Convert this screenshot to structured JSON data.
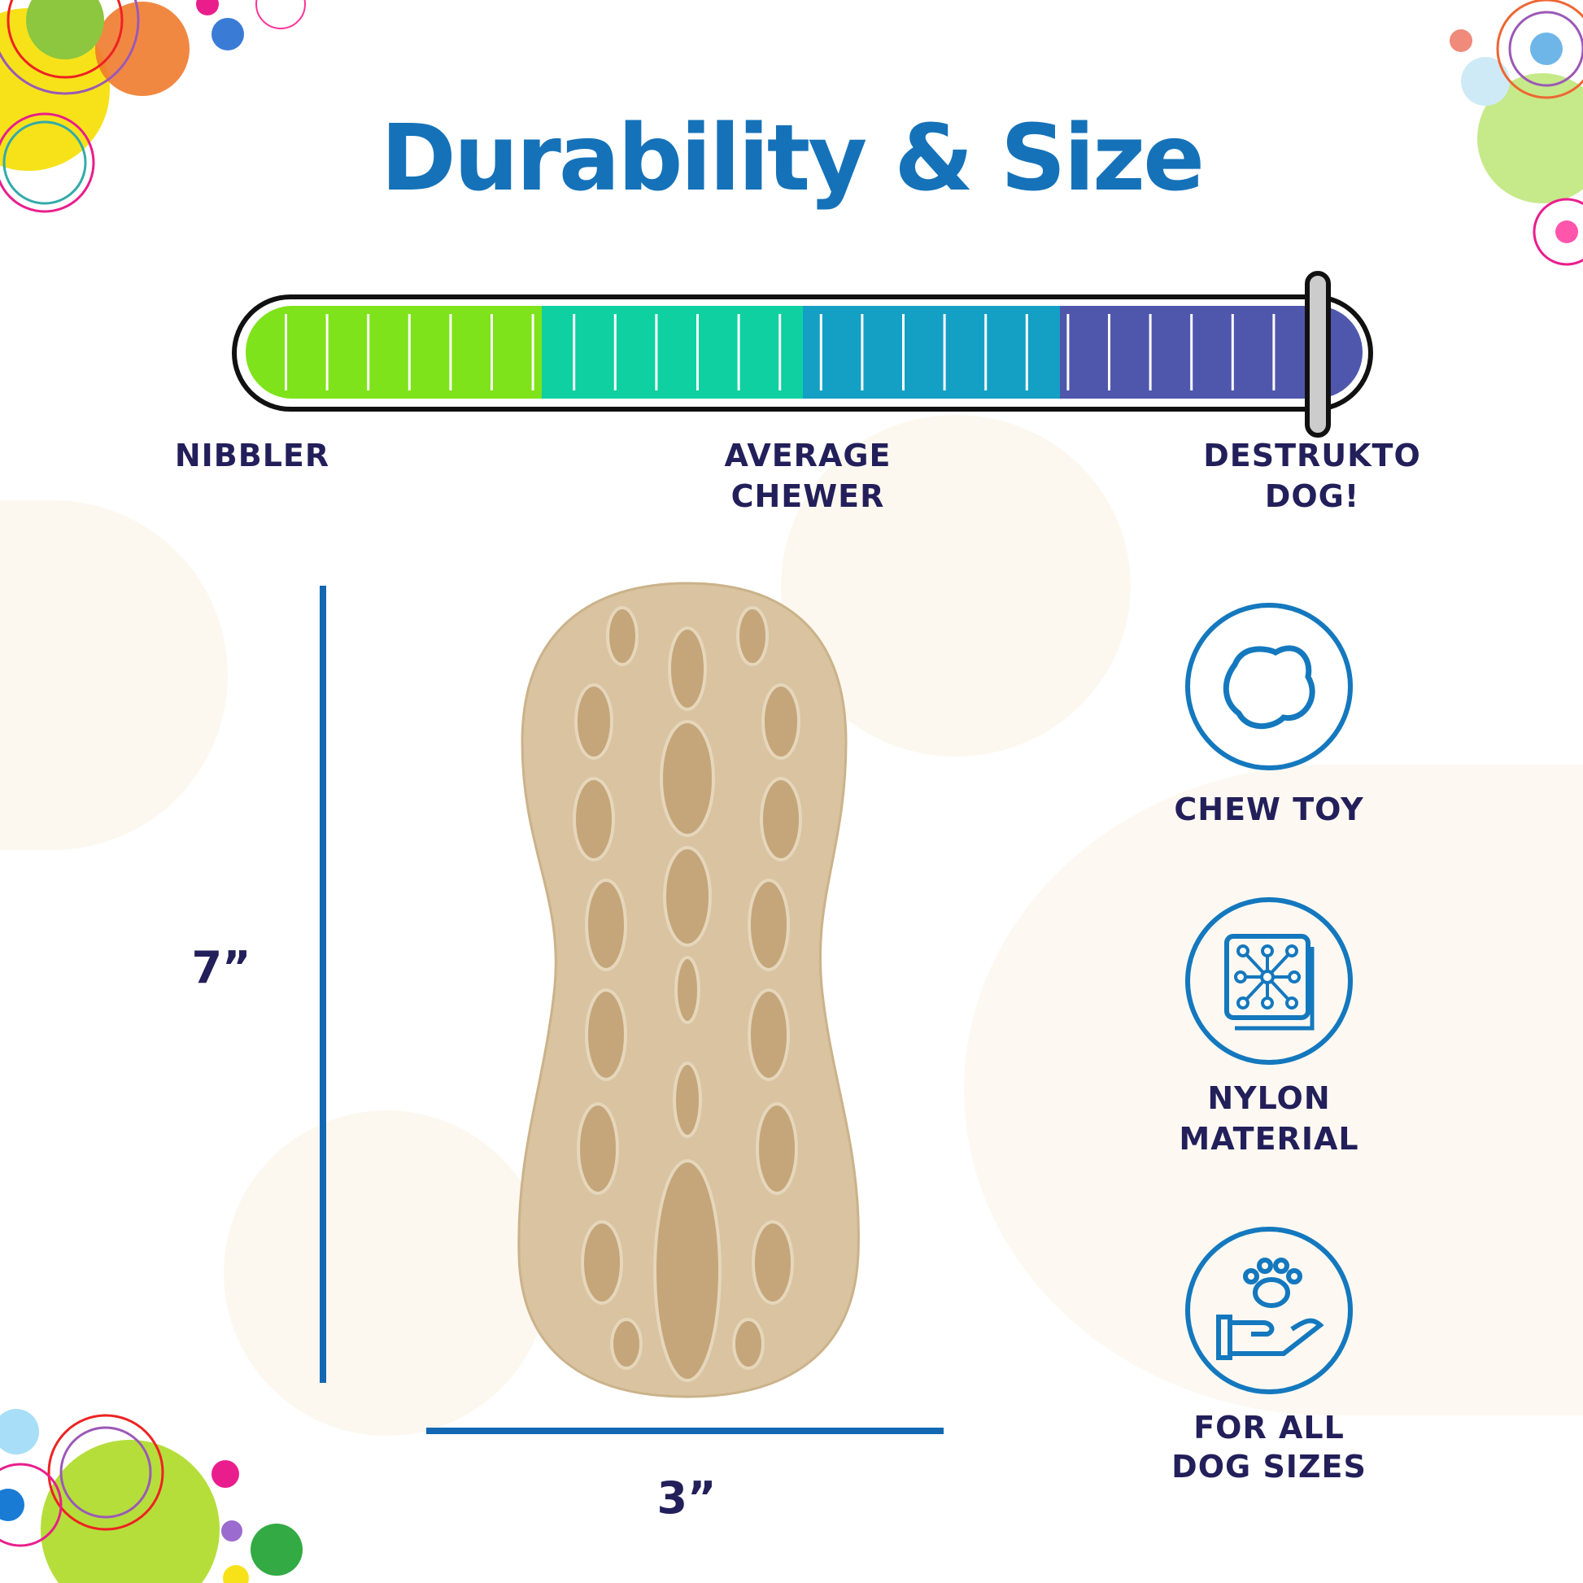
{
  "title": "Durability & Size",
  "durability_scale": {
    "labels": [
      "NIBBLER",
      "AVERAGE",
      "CHEWER",
      "DESTRUKTO",
      "DOG!"
    ],
    "segments": [
      "#7ee31a",
      "#0fd0a0",
      "#14a0c4",
      "#4f57ad"
    ],
    "level_percent": 96
  },
  "dimensions": {
    "height": "7”",
    "width": "3”"
  },
  "features": [
    {
      "icon": "chew-toy-icon",
      "line1": "CHEW TOY",
      "line2": ""
    },
    {
      "icon": "nylon-material-icon",
      "line1": "NYLON",
      "line2": "MATERIAL"
    },
    {
      "icon": "hand-paw-icon",
      "line1": "FOR ALL",
      "line2": "DOG SIZES"
    }
  ],
  "colors": {
    "title": "#1572b9",
    "text": "#221f5a",
    "accent": "#1478be"
  }
}
